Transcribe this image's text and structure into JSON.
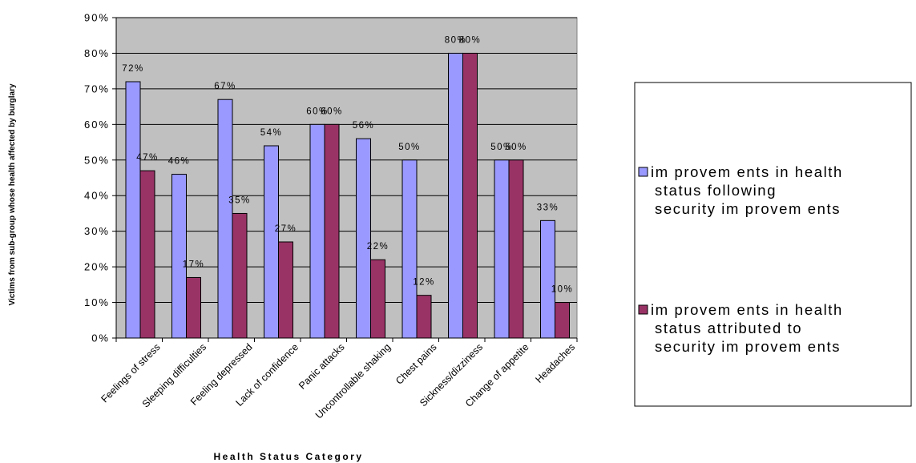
{
  "chart_data": {
    "type": "bar",
    "categories": [
      "Feelings of stress",
      "Sleeping difficulties",
      "Feeling depressed",
      "Lack of confidence",
      "Panic attacks",
      "Uncontrollable shaking",
      "Chest pains",
      "Sickness/dizziness",
      "Change of appetite",
      "Headaches"
    ],
    "series": [
      {
        "name": "improvements in health status following security improvements",
        "legend_lines": [
          "im provem ents in health",
          "status following",
          "security im provem ents"
        ],
        "values": [
          72,
          46,
          67,
          54,
          60,
          56,
          50,
          80,
          50,
          33
        ],
        "labels": [
          "72%",
          "46%",
          "67%",
          "54%",
          "60%",
          "56%",
          "50%",
          "80%",
          "50%",
          "33%"
        ],
        "color": "#9999ff"
      },
      {
        "name": "improvements in health status attributed to security improvements",
        "legend_lines": [
          "im provem ents in health",
          "status attributed to",
          "security im provem ents"
        ],
        "values": [
          47,
          17,
          35,
          27,
          60,
          22,
          12,
          80,
          50,
          10
        ],
        "labels": [
          "47%",
          "17%",
          "35%",
          "27%",
          "60%",
          "22%",
          "12%",
          "80%",
          "50%",
          "10%"
        ],
        "color": "#993366"
      }
    ],
    "ylim": [
      0,
      90
    ],
    "yticks": [
      "0%",
      "10%",
      "20%",
      "30%",
      "40%",
      "50%",
      "60%",
      "70%",
      "80%",
      "90%"
    ],
    "xlabel": "Health Status Category",
    "ylabel": "Victims from sub-group whose health affected by burglary",
    "grid": true,
    "plot_background": "#c0c0c0",
    "legend_position": "right"
  }
}
